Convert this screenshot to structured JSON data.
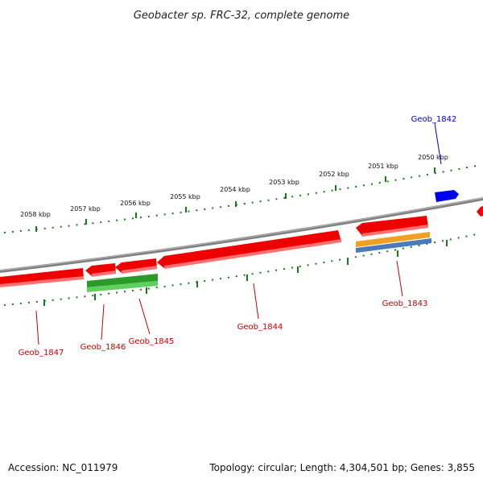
{
  "title": "Geobacter sp. FRC-32, complete genome",
  "footer": {
    "accession": "Accession: NC_011979",
    "summary": "Topology: circular; Length: 4,304,501 bp; Genes: 3,855"
  },
  "colors": {
    "backbone": "#808080",
    "forward_gene": "#0000ee",
    "reverse_gene": "#ee0000",
    "tick": "#1a7a1a",
    "orange_feature": "#f0a020",
    "blue_feature": "#4a7ab8",
    "green_feature": "#2a9a2a"
  },
  "scale_ticks": [
    {
      "label": "2050 kbp"
    },
    {
      "label": "2051 kbp"
    },
    {
      "label": "2052 kbp"
    },
    {
      "label": "2053 kbp"
    },
    {
      "label": "2054 kbp"
    },
    {
      "label": "2055 kbp"
    },
    {
      "label": "2056 kbp"
    },
    {
      "label": "2057 kbp"
    },
    {
      "label": "2058 kbp"
    }
  ],
  "genes": [
    {
      "id": "Geob_1842",
      "strand": "forward"
    },
    {
      "id": "Geob_1843",
      "strand": "reverse"
    },
    {
      "id": "Geob_1844",
      "strand": "reverse"
    },
    {
      "id": "Geob_1845",
      "strand": "reverse"
    },
    {
      "id": "Geob_1846",
      "strand": "reverse"
    },
    {
      "id": "Geob_1847",
      "strand": "reverse"
    }
  ]
}
